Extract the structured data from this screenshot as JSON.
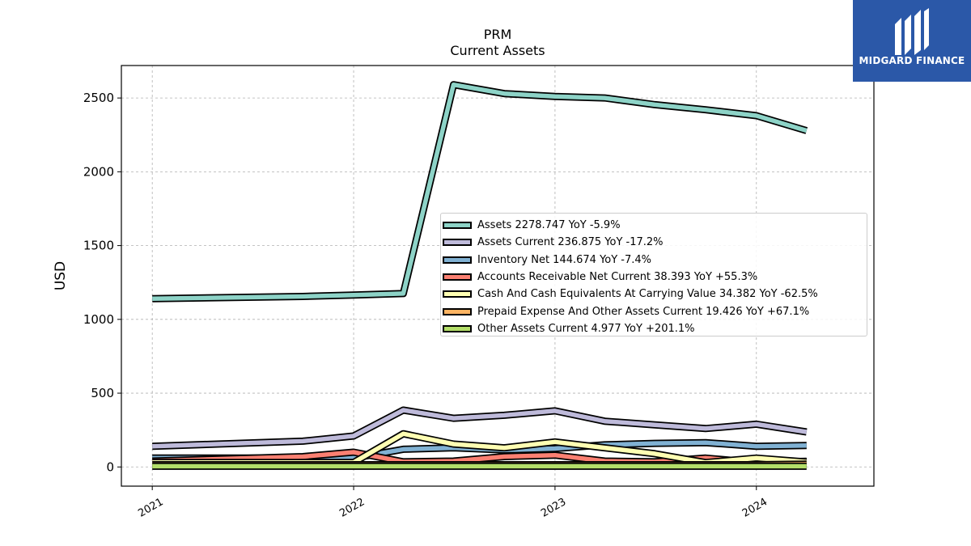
{
  "logo": {
    "text": "MIDGARD FINANCE"
  },
  "chart_data": {
    "type": "line",
    "title": "PRM",
    "subtitle": "Current  Assets",
    "xlabel": "",
    "ylabel": "USD",
    "xlim": [
      "2020-11-06",
      "2024-08-01"
    ],
    "ylim": [
      -130,
      2720
    ],
    "yticks": [
      0,
      500,
      1000,
      1500,
      2000,
      2500
    ],
    "xticks": [
      {
        "label": "2021",
        "date": "2021-01-01"
      },
      {
        "label": "2022",
        "date": "2022-01-01"
      },
      {
        "label": "2023",
        "date": "2023-01-01"
      },
      {
        "label": "2024",
        "date": "2024-01-01"
      }
    ],
    "grid": true,
    "legend_position": "center-right",
    "x": [
      "2021-01-01",
      "2021-10-01",
      "2022-01-01",
      "2022-04-01",
      "2022-07-01",
      "2022-10-01",
      "2023-01-01",
      "2023-04-01",
      "2023-07-01",
      "2023-10-01",
      "2024-01-01",
      "2024-04-01"
    ],
    "series": [
      {
        "name": "Assets  2278.747 YoY -5.9%",
        "color": "#8dd3c7",
        "values": [
          1140,
          1155,
          1165,
          1175,
          2590,
          2530,
          2510,
          2500,
          2455,
          2420,
          2380,
          2279
        ]
      },
      {
        "name": "Assets Current  236.875 YoY -17.2%",
        "color": "#bebada",
        "values": [
          140,
          175,
          210,
          385,
          330,
          350,
          380,
          310,
          285,
          260,
          290,
          237
        ]
      },
      {
        "name": "Inventory Net  144.674 YoY -7.4%",
        "color": "#80b1d3",
        "values": [
          60,
          60,
          60,
          120,
          130,
          115,
          125,
          150,
          160,
          165,
          140,
          145
        ]
      },
      {
        "name": "Accounts Receivable Net Current  38.393 YoY +55.3%",
        "color": "#fb8072",
        "values": [
          40,
          70,
          100,
          35,
          40,
          70,
          80,
          40,
          35,
          60,
          30,
          38
        ]
      },
      {
        "name": "Cash And Cash Equivalents At Carrying Value  34.382 YoY -62.5%",
        "color": "#ffffb3",
        "values": [
          30,
          30,
          30,
          225,
          155,
          130,
          170,
          130,
          90,
          30,
          60,
          34
        ]
      },
      {
        "name": "Prepaid Expense And Other Assets Current  19.426 YoY +67.1%",
        "color": "#fdb462",
        "values": [
          15,
          15,
          15,
          15,
          15,
          15,
          15,
          15,
          15,
          15,
          15,
          19
        ]
      },
      {
        "name": "Other Assets Current  4.977 YoY +201.1%",
        "color": "#b3de69",
        "values": [
          5,
          5,
          5,
          5,
          5,
          5,
          5,
          5,
          5,
          5,
          5,
          5
        ]
      }
    ]
  }
}
